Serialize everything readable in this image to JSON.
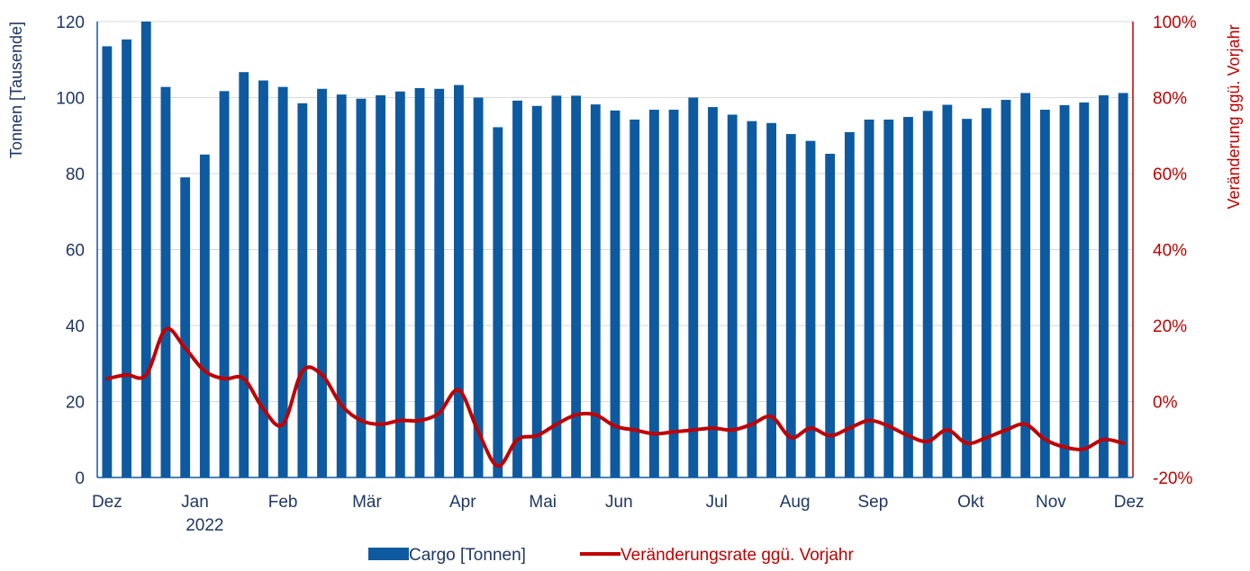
{
  "chart_data": {
    "type": "bar+line",
    "title": "",
    "ylabel_left": "Tonnen [Tausende]",
    "ylabel_right": "Veränderung ggü. Vorjahr",
    "ylim_left": [
      0,
      120
    ],
    "yticks_left": [
      "0",
      "20",
      "40",
      "60",
      "80",
      "100",
      "120"
    ],
    "ylim_right": [
      -20,
      100
    ],
    "yticks_right": [
      "-20%",
      "0%",
      "20%",
      "40%",
      "60%",
      "80%",
      "100%"
    ],
    "month_labels": [
      {
        "label": "Dez",
        "index": 0
      },
      {
        "label": "Jan",
        "index": 4.5
      },
      {
        "label": "Feb",
        "index": 9
      },
      {
        "label": "Mär",
        "index": 13.3
      },
      {
        "label": "Apr",
        "index": 18.2
      },
      {
        "label": "Mai",
        "index": 22.3
      },
      {
        "label": "Jun",
        "index": 26.2
      },
      {
        "label": "Jul",
        "index": 31.2
      },
      {
        "label": "Aug",
        "index": 35.2
      },
      {
        "label": "Sep",
        "index": 39.2
      },
      {
        "label": "Okt",
        "index": 44.2
      },
      {
        "label": "Nov",
        "index": 48.3
      },
      {
        "label": "Dez",
        "index": 52.3
      }
    ],
    "year_label": {
      "label": "2022",
      "index": 5
    },
    "series": [
      {
        "name": "Cargo [Tonnen]",
        "type": "bar",
        "axis": "left",
        "color": "#0e5aa0",
        "values": [
          113.5,
          115.3,
          120.5,
          102.8,
          79,
          85,
          101.7,
          106.7,
          104.5,
          102.8,
          98.5,
          102.3,
          100.8,
          99.7,
          100.6,
          101.6,
          102.5,
          102.3,
          103.3,
          100,
          92.2,
          99.2,
          97.8,
          100.5,
          100.5,
          98.2,
          96.6,
          94.2,
          96.8,
          96.8,
          100,
          97.5,
          95.5,
          93.8,
          93.3,
          90.4,
          88.6,
          85.2,
          90.9,
          94.2,
          94.2,
          94.9,
          96.5,
          98.1,
          94.4,
          97.2,
          99.4,
          101.2,
          96.8,
          98,
          98.7,
          100.6,
          101.2
        ]
      },
      {
        "name": "Veränderungsrate ggü. Vorjahr",
        "type": "line",
        "axis": "right",
        "color": "#c00000",
        "values": [
          6,
          7,
          7,
          19,
          14,
          8,
          6,
          6,
          -2,
          -6,
          8,
          7,
          -1,
          -5,
          -6,
          -5,
          -5,
          -3,
          3,
          -8,
          -17,
          -10,
          -9,
          -6,
          -3.5,
          -3.5,
          -6.5,
          -7.5,
          -8.5,
          -8,
          -7.5,
          -7,
          -7.5,
          -6,
          -4,
          -9.5,
          -7,
          -9,
          -7,
          -5,
          -6.5,
          -9,
          -10.5,
          -7.5,
          -11,
          -9.5,
          -7.5,
          -6,
          -10,
          -12,
          -12.5,
          -10,
          -11
        ]
      }
    ],
    "legend_position": "bottom-center",
    "grid": true
  }
}
